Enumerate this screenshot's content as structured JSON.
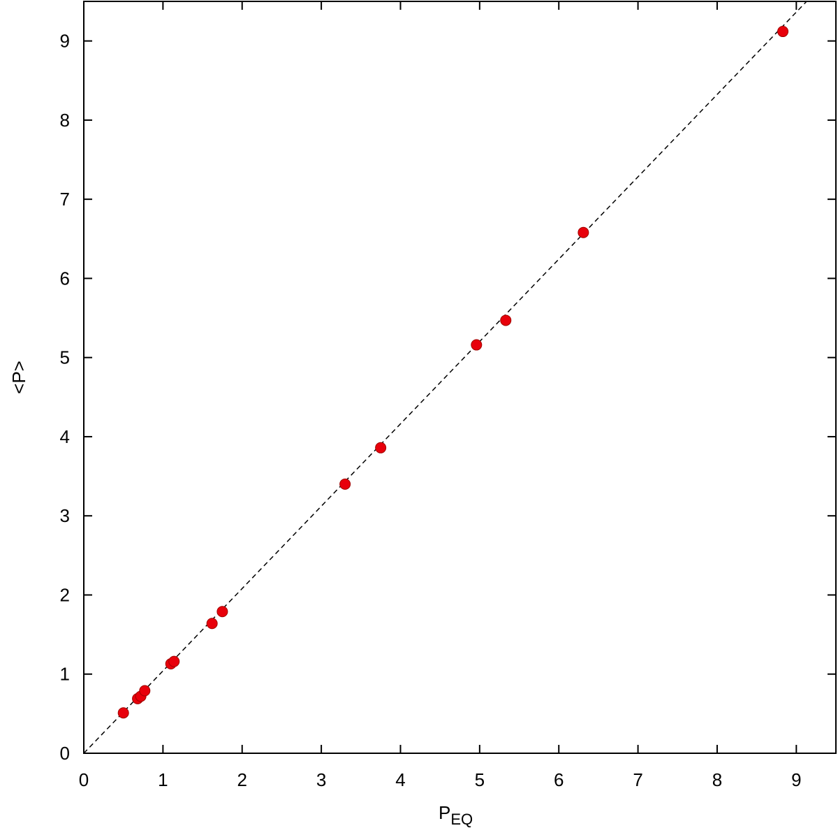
{
  "chart_data": {
    "type": "scatter",
    "xlabel": "P",
    "xlabel_subscript": "EQ",
    "ylabel": "<P>",
    "x": [
      0.5,
      0.68,
      0.72,
      0.77,
      1.1,
      1.14,
      1.62,
      1.75,
      3.3,
      3.75,
      4.96,
      5.33,
      6.31,
      8.83
    ],
    "series": [
      {
        "color": "#e8000b",
        "values": [
          0.51,
          0.69,
          0.72,
          0.79,
          1.13,
          1.16,
          1.64,
          1.79,
          3.4,
          3.86,
          5.16,
          5.47,
          6.58,
          9.12
        ]
      }
    ],
    "reference_line": {
      "x": [
        0,
        9.13
      ],
      "y": [
        0,
        9.5
      ],
      "color": "#000000",
      "dashed": true
    },
    "xlim": [
      0,
      9.5
    ],
    "ylim": [
      0,
      9.5
    ],
    "xticks": [
      0,
      1,
      2,
      3,
      4,
      5,
      6,
      7,
      8,
      9
    ],
    "yticks": [
      0,
      1,
      2,
      3,
      4,
      5,
      6,
      7,
      8,
      9
    ],
    "grid": false
  }
}
